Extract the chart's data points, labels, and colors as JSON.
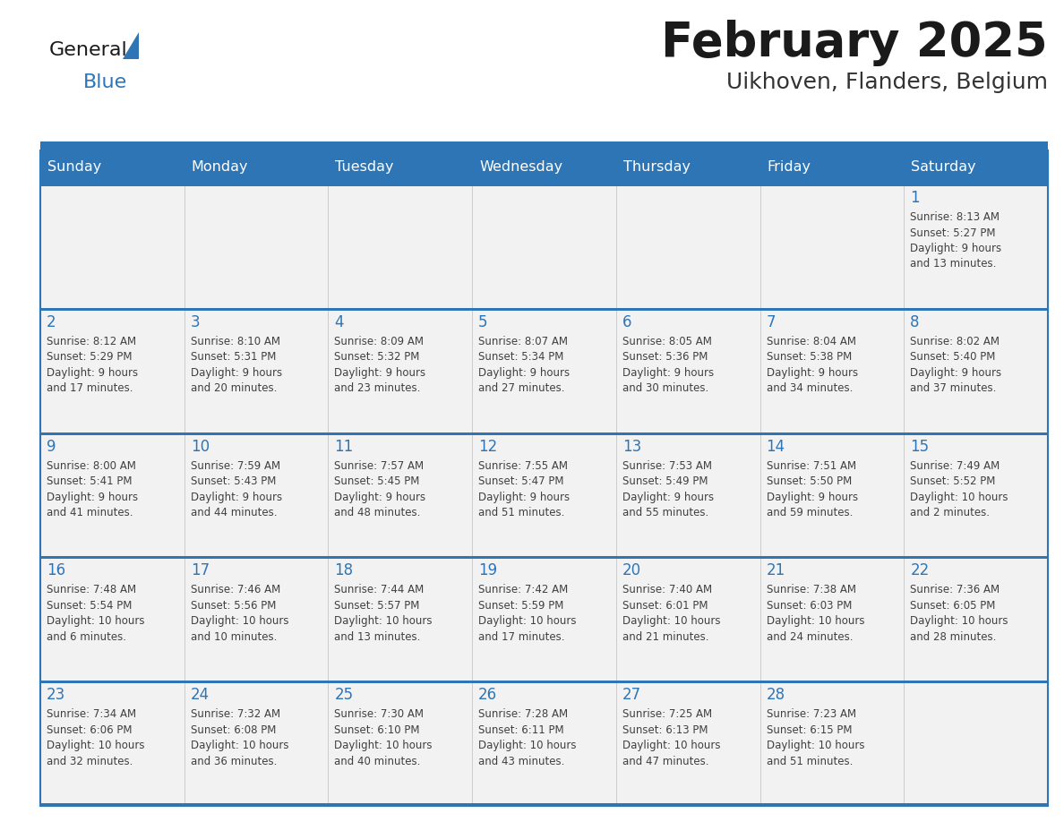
{
  "title": "February 2025",
  "subtitle": "Uikhoven, Flanders, Belgium",
  "days_of_week": [
    "Sunday",
    "Monday",
    "Tuesday",
    "Wednesday",
    "Thursday",
    "Friday",
    "Saturday"
  ],
  "header_bg": "#2E75B6",
  "header_text": "#FFFFFF",
  "cell_bg": "#F2F2F2",
  "cell_bg_white": "#FFFFFF",
  "divider_color": "#2E75B6",
  "row_sep_color": "#2E75B6",
  "text_color": "#404040",
  "day_number_color": "#2E75B6",
  "title_color": "#1a1a1a",
  "subtitle_color": "#333333",
  "logo_general_color": "#1a1a1a",
  "logo_blue_color": "#2E75B6",
  "calendar_data": [
    [
      {
        "day": null,
        "info": null
      },
      {
        "day": null,
        "info": null
      },
      {
        "day": null,
        "info": null
      },
      {
        "day": null,
        "info": null
      },
      {
        "day": null,
        "info": null
      },
      {
        "day": null,
        "info": null
      },
      {
        "day": 1,
        "info": "Sunrise: 8:13 AM\nSunset: 5:27 PM\nDaylight: 9 hours\nand 13 minutes."
      }
    ],
    [
      {
        "day": 2,
        "info": "Sunrise: 8:12 AM\nSunset: 5:29 PM\nDaylight: 9 hours\nand 17 minutes."
      },
      {
        "day": 3,
        "info": "Sunrise: 8:10 AM\nSunset: 5:31 PM\nDaylight: 9 hours\nand 20 minutes."
      },
      {
        "day": 4,
        "info": "Sunrise: 8:09 AM\nSunset: 5:32 PM\nDaylight: 9 hours\nand 23 minutes."
      },
      {
        "day": 5,
        "info": "Sunrise: 8:07 AM\nSunset: 5:34 PM\nDaylight: 9 hours\nand 27 minutes."
      },
      {
        "day": 6,
        "info": "Sunrise: 8:05 AM\nSunset: 5:36 PM\nDaylight: 9 hours\nand 30 minutes."
      },
      {
        "day": 7,
        "info": "Sunrise: 8:04 AM\nSunset: 5:38 PM\nDaylight: 9 hours\nand 34 minutes."
      },
      {
        "day": 8,
        "info": "Sunrise: 8:02 AM\nSunset: 5:40 PM\nDaylight: 9 hours\nand 37 minutes."
      }
    ],
    [
      {
        "day": 9,
        "info": "Sunrise: 8:00 AM\nSunset: 5:41 PM\nDaylight: 9 hours\nand 41 minutes."
      },
      {
        "day": 10,
        "info": "Sunrise: 7:59 AM\nSunset: 5:43 PM\nDaylight: 9 hours\nand 44 minutes."
      },
      {
        "day": 11,
        "info": "Sunrise: 7:57 AM\nSunset: 5:45 PM\nDaylight: 9 hours\nand 48 minutes."
      },
      {
        "day": 12,
        "info": "Sunrise: 7:55 AM\nSunset: 5:47 PM\nDaylight: 9 hours\nand 51 minutes."
      },
      {
        "day": 13,
        "info": "Sunrise: 7:53 AM\nSunset: 5:49 PM\nDaylight: 9 hours\nand 55 minutes."
      },
      {
        "day": 14,
        "info": "Sunrise: 7:51 AM\nSunset: 5:50 PM\nDaylight: 9 hours\nand 59 minutes."
      },
      {
        "day": 15,
        "info": "Sunrise: 7:49 AM\nSunset: 5:52 PM\nDaylight: 10 hours\nand 2 minutes."
      }
    ],
    [
      {
        "day": 16,
        "info": "Sunrise: 7:48 AM\nSunset: 5:54 PM\nDaylight: 10 hours\nand 6 minutes."
      },
      {
        "day": 17,
        "info": "Sunrise: 7:46 AM\nSunset: 5:56 PM\nDaylight: 10 hours\nand 10 minutes."
      },
      {
        "day": 18,
        "info": "Sunrise: 7:44 AM\nSunset: 5:57 PM\nDaylight: 10 hours\nand 13 minutes."
      },
      {
        "day": 19,
        "info": "Sunrise: 7:42 AM\nSunset: 5:59 PM\nDaylight: 10 hours\nand 17 minutes."
      },
      {
        "day": 20,
        "info": "Sunrise: 7:40 AM\nSunset: 6:01 PM\nDaylight: 10 hours\nand 21 minutes."
      },
      {
        "day": 21,
        "info": "Sunrise: 7:38 AM\nSunset: 6:03 PM\nDaylight: 10 hours\nand 24 minutes."
      },
      {
        "day": 22,
        "info": "Sunrise: 7:36 AM\nSunset: 6:05 PM\nDaylight: 10 hours\nand 28 minutes."
      }
    ],
    [
      {
        "day": 23,
        "info": "Sunrise: 7:34 AM\nSunset: 6:06 PM\nDaylight: 10 hours\nand 32 minutes."
      },
      {
        "day": 24,
        "info": "Sunrise: 7:32 AM\nSunset: 6:08 PM\nDaylight: 10 hours\nand 36 minutes."
      },
      {
        "day": 25,
        "info": "Sunrise: 7:30 AM\nSunset: 6:10 PM\nDaylight: 10 hours\nand 40 minutes."
      },
      {
        "day": 26,
        "info": "Sunrise: 7:28 AM\nSunset: 6:11 PM\nDaylight: 10 hours\nand 43 minutes."
      },
      {
        "day": 27,
        "info": "Sunrise: 7:25 AM\nSunset: 6:13 PM\nDaylight: 10 hours\nand 47 minutes."
      },
      {
        "day": 28,
        "info": "Sunrise: 7:23 AM\nSunset: 6:15 PM\nDaylight: 10 hours\nand 51 minutes."
      },
      {
        "day": null,
        "info": null
      }
    ]
  ],
  "figsize": [
    11.88,
    9.18
  ],
  "dpi": 100
}
